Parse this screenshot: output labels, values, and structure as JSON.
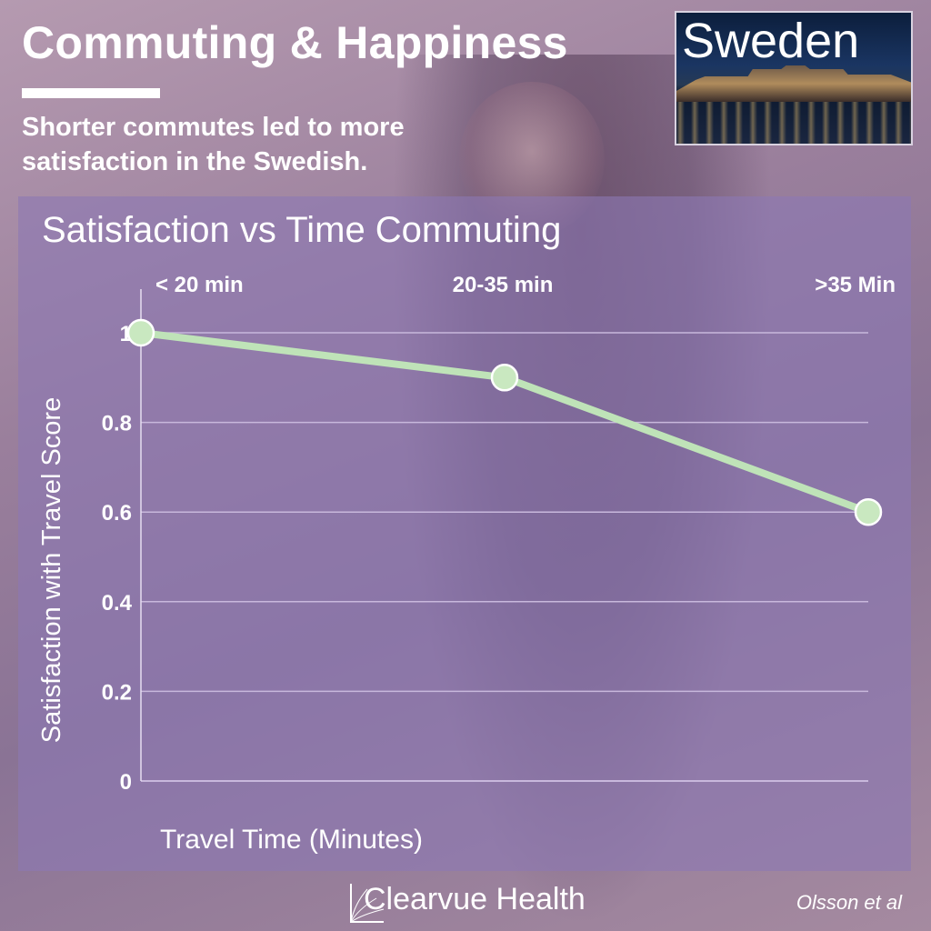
{
  "header": {
    "title": "Commuting & Happiness",
    "subtitle": "Shorter commutes led to more satisfaction in the Swedish."
  },
  "photo": {
    "label": "Sweden"
  },
  "chart_data": {
    "type": "line",
    "title": "Satisfaction vs Time Commuting",
    "xlabel": "Travel Time (Minutes)",
    "ylabel": "Satisfaction with Travel Score",
    "categories": [
      "< 20 min",
      "20-35 min",
      ">35 Min"
    ],
    "series": [
      {
        "values": [
          1.0,
          0.9,
          0.6
        ]
      }
    ],
    "ylim": [
      0,
      1
    ],
    "yticks": [
      0,
      0.2,
      0.4,
      0.6,
      0.8,
      1
    ],
    "ytick_labels": [
      "0",
      "0.2",
      "0.4",
      "0.6",
      "0.8",
      "1"
    ],
    "grid": true,
    "colors": {
      "line": "#bfe3b8",
      "marker": "#c9e8c0",
      "grid": "#c8b8dc"
    }
  },
  "footer": {
    "brand": "Clearvue Health",
    "credit": "Olsson et al"
  }
}
